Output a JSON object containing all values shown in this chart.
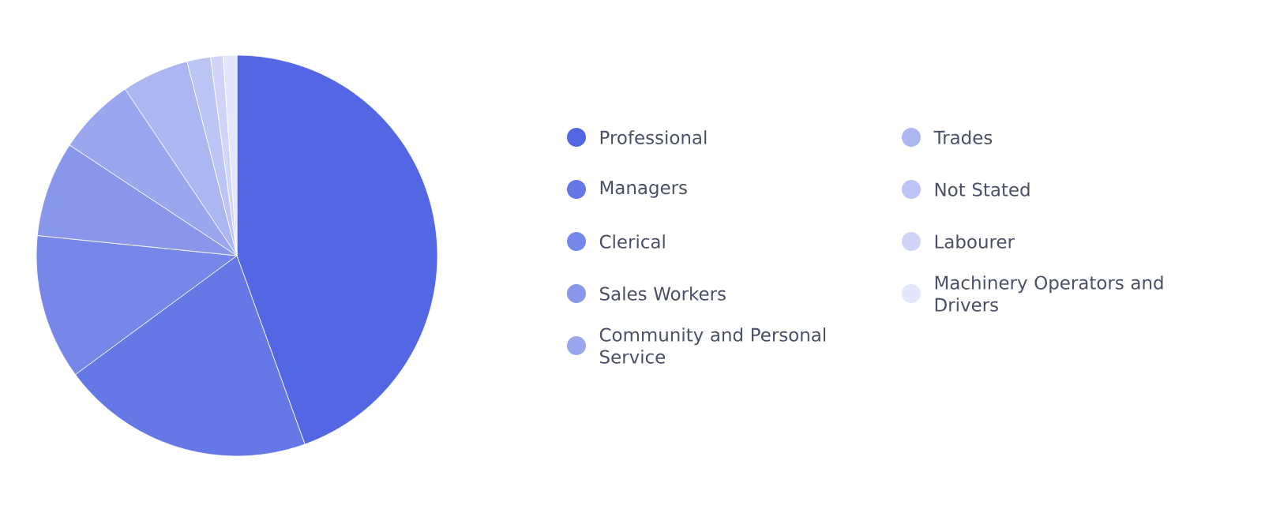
{
  "chart_data": {
    "type": "pie",
    "categories": [
      "Professional",
      "Managers",
      "Clerical",
      "Sales Workers",
      "Community and Personal Service",
      "Trades",
      "Not Stated",
      "Labourer",
      "Machinery Operators and Drivers"
    ],
    "values": [
      44.5,
      20.4,
      11.7,
      7.7,
      6.3,
      5.4,
      1.9,
      1.0,
      1.1
    ],
    "colors": [
      "#5366e3",
      "#6677e6",
      "#7787e9",
      "#8997eb",
      "#9aa7ee",
      "#acb6f1",
      "#bdc5f4",
      "#d0d5f7",
      "#e4e7fb"
    ],
    "legend": "right"
  }
}
